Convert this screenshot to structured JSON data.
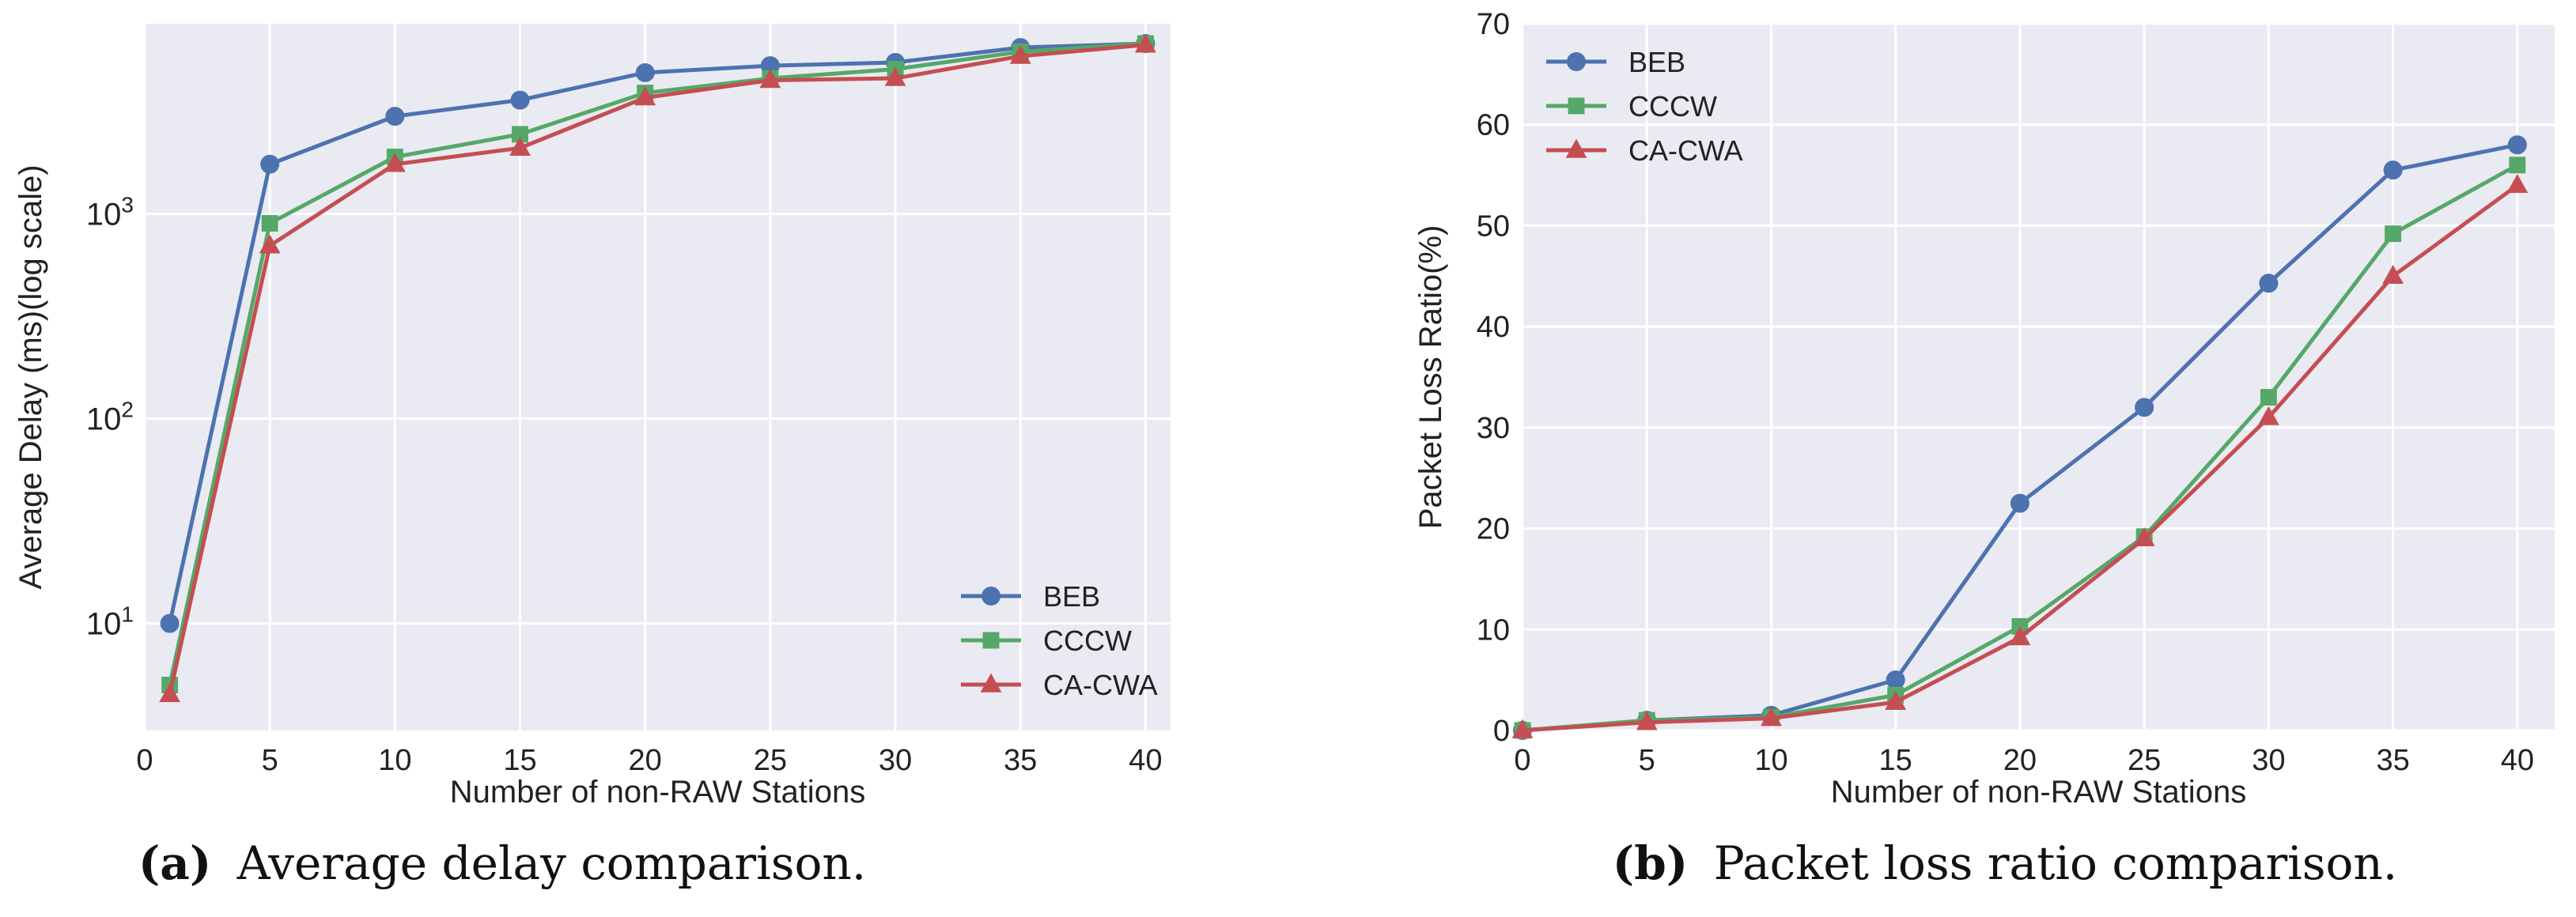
{
  "chart_data": [
    {
      "id": "a",
      "type": "line",
      "x": [
        1,
        5,
        10,
        15,
        20,
        25,
        30,
        35,
        40
      ],
      "x_ticks": [
        0,
        5,
        10,
        15,
        20,
        25,
        30,
        35,
        40
      ],
      "xlim": [
        0,
        41
      ],
      "y_scale": "log",
      "ylim": [
        3,
        8500
      ],
      "y_ticks": [
        {
          "value": 10,
          "base": "10",
          "exp": "1"
        },
        {
          "value": 100,
          "base": "10",
          "exp": "2"
        },
        {
          "value": 1000,
          "base": "10",
          "exp": "3"
        }
      ],
      "xlabel": "Number of non-RAW Stations",
      "ylabel": "Average Delay (ms)(log scale)",
      "grid": true,
      "legend_position": "lower-right",
      "caption_label": "(a)",
      "caption_text": "Average delay comparison.",
      "series": [
        {
          "name": "BEB",
          "color": "#4c72b0",
          "marker": "circle",
          "values": [
            10,
            1750,
            3000,
            3600,
            4900,
            5300,
            5500,
            6500,
            6800
          ]
        },
        {
          "name": "CCCW",
          "color": "#55a868",
          "marker": "square",
          "values": [
            5,
            900,
            1900,
            2450,
            3900,
            4600,
            5100,
            6200,
            6800
          ]
        },
        {
          "name": "CA-CWA",
          "color": "#c44e52",
          "marker": "triangle",
          "values": [
            4.5,
            700,
            1750,
            2100,
            3700,
            4500,
            4600,
            5900,
            6700
          ]
        }
      ]
    },
    {
      "id": "b",
      "type": "line",
      "x": [
        0,
        5,
        10,
        15,
        20,
        25,
        30,
        35,
        40
      ],
      "x_ticks": [
        0,
        5,
        10,
        15,
        20,
        25,
        30,
        35,
        40
      ],
      "xlim": [
        0,
        41.5
      ],
      "y_scale": "linear",
      "ylim": [
        0,
        70
      ],
      "y_ticks": [
        0,
        10,
        20,
        30,
        40,
        50,
        60,
        70
      ],
      "xlabel": "Number of non-RAW Stations",
      "ylabel": "Packet Loss Ratio(%)",
      "grid": true,
      "legend_position": "upper-left",
      "caption_label": "(b)",
      "caption_text": "Packet loss ratio comparison.",
      "series": [
        {
          "name": "BEB",
          "color": "#4c72b0",
          "marker": "circle",
          "values": [
            0,
            1,
            1.5,
            5,
            22.5,
            32,
            44.3,
            55.5,
            58
          ]
        },
        {
          "name": "CCCW",
          "color": "#55a868",
          "marker": "square",
          "values": [
            0,
            1,
            1.3,
            3.5,
            10.3,
            19.2,
            33,
            49.2,
            56
          ]
        },
        {
          "name": "CA-CWA",
          "color": "#c44e52",
          "marker": "triangle",
          "values": [
            0,
            0.8,
            1.2,
            2.8,
            9.2,
            19,
            31,
            45,
            54
          ]
        }
      ]
    }
  ]
}
